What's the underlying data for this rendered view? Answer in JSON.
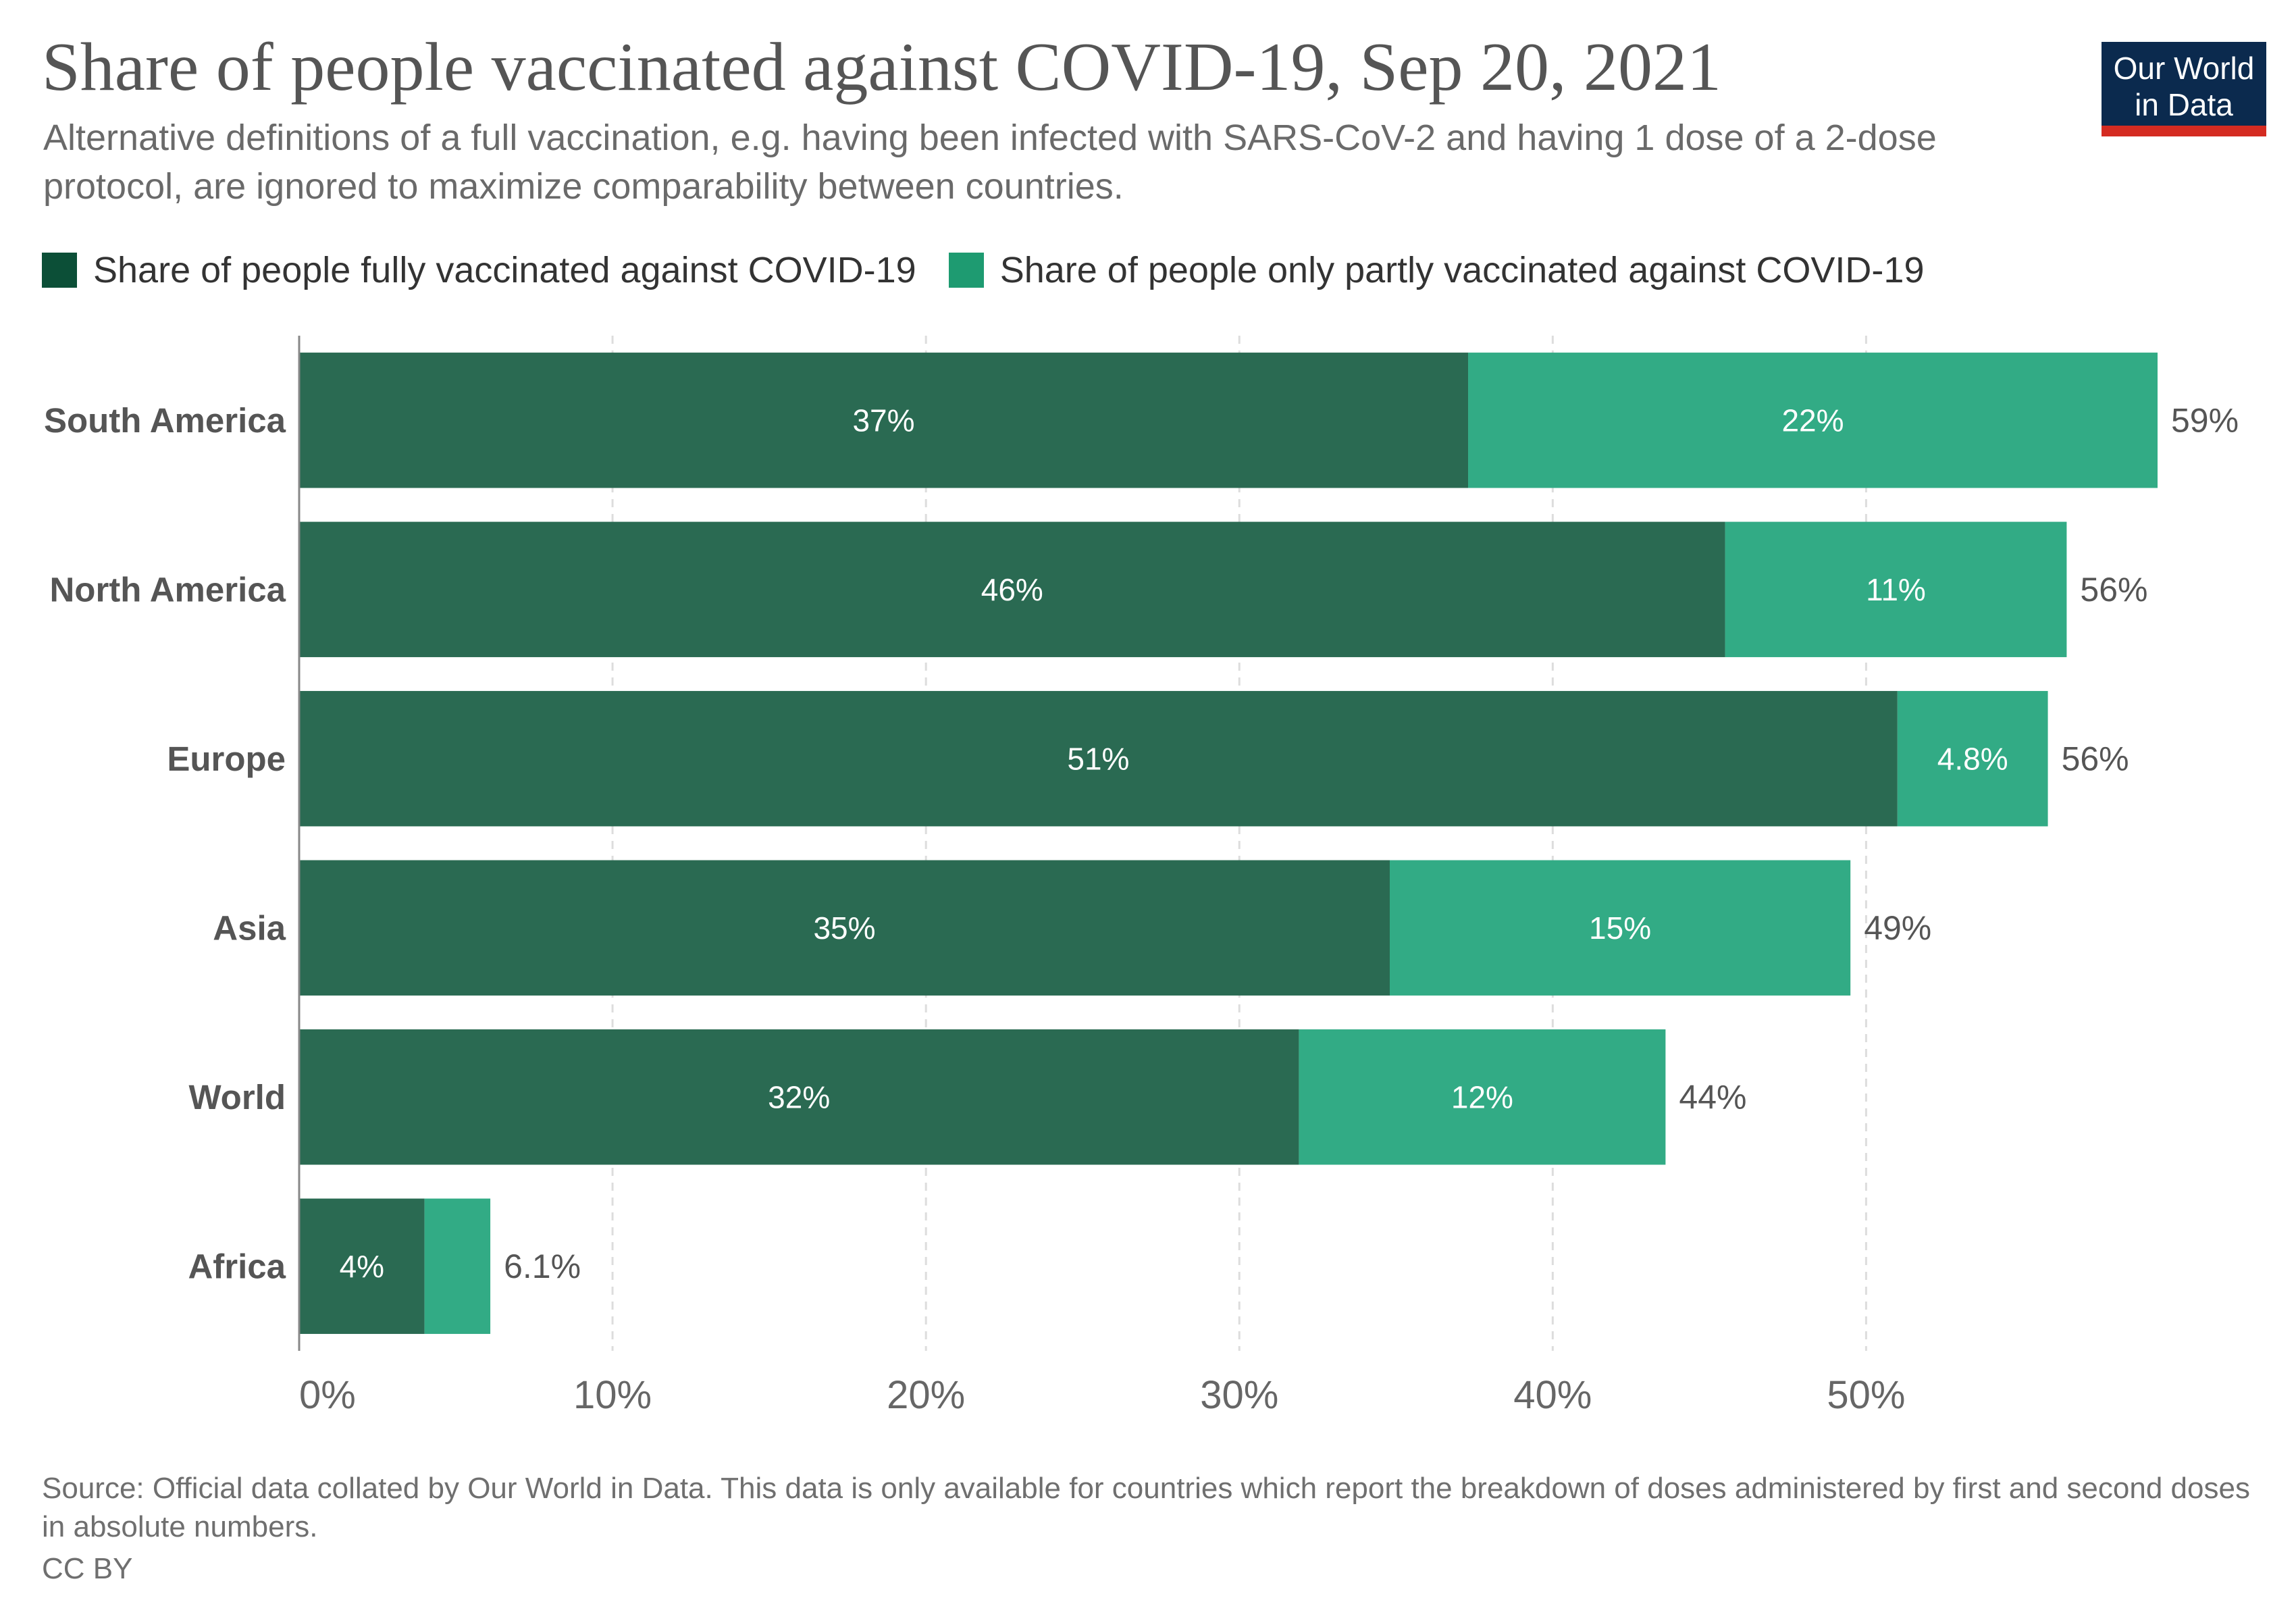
{
  "header": {
    "title": "Share of people vaccinated against COVID-19, Sep 20, 2021",
    "subtitle": "Alternative definitions of a full vaccination, e.g. having been infected with SARS-CoV-2 and having 1 dose of a 2-dose protocol, are ignored to maximize comparability between countries."
  },
  "logo": {
    "line1": "Our World",
    "line2": "in Data"
  },
  "colors": {
    "fully": "#2a6a52",
    "partly": "#32ab85",
    "fully_legend": "#0c4f37",
    "partly_legend": "#1e9b71",
    "grid": "#dddddd",
    "axis": "#888888"
  },
  "footer": {
    "source": "Source: Official data collated by Our World in Data. This data is only available for countries which report the breakdown of doses administered by first and second doses in absolute numbers.",
    "license": "CC BY"
  },
  "chart_data": {
    "type": "bar",
    "orientation": "horizontal",
    "stacked": true,
    "title": "Share of people vaccinated against COVID-19, Sep 20, 2021",
    "categories": [
      "South America",
      "North America",
      "Europe",
      "Asia",
      "World",
      "Africa"
    ],
    "series": [
      {
        "name": "Share of people fully vaccinated against COVID-19",
        "values": [
          37.3,
          45.5,
          51.0,
          34.8,
          31.9,
          4.0
        ],
        "labels": [
          "37%",
          "46%",
          "51%",
          "35%",
          "32%",
          "4%"
        ]
      },
      {
        "name": "Share of people only partly vaccinated against COVID-19",
        "values": [
          22.0,
          10.9,
          4.8,
          14.7,
          11.7,
          2.1
        ],
        "labels": [
          "22%",
          "11%",
          "4.8%",
          "15%",
          "12%",
          ""
        ]
      }
    ],
    "totals": [
      "59%",
      "56%",
      "56%",
      "49%",
      "44%",
      "6.1%"
    ],
    "xticks": [
      0,
      10,
      20,
      30,
      40,
      50
    ],
    "xtick_labels": [
      "0%",
      "10%",
      "20%",
      "30%",
      "40%",
      "50%"
    ],
    "xlim": [
      0,
      59.3
    ],
    "xlabel": "",
    "ylabel": "",
    "grid": true,
    "legend_position": "top"
  }
}
